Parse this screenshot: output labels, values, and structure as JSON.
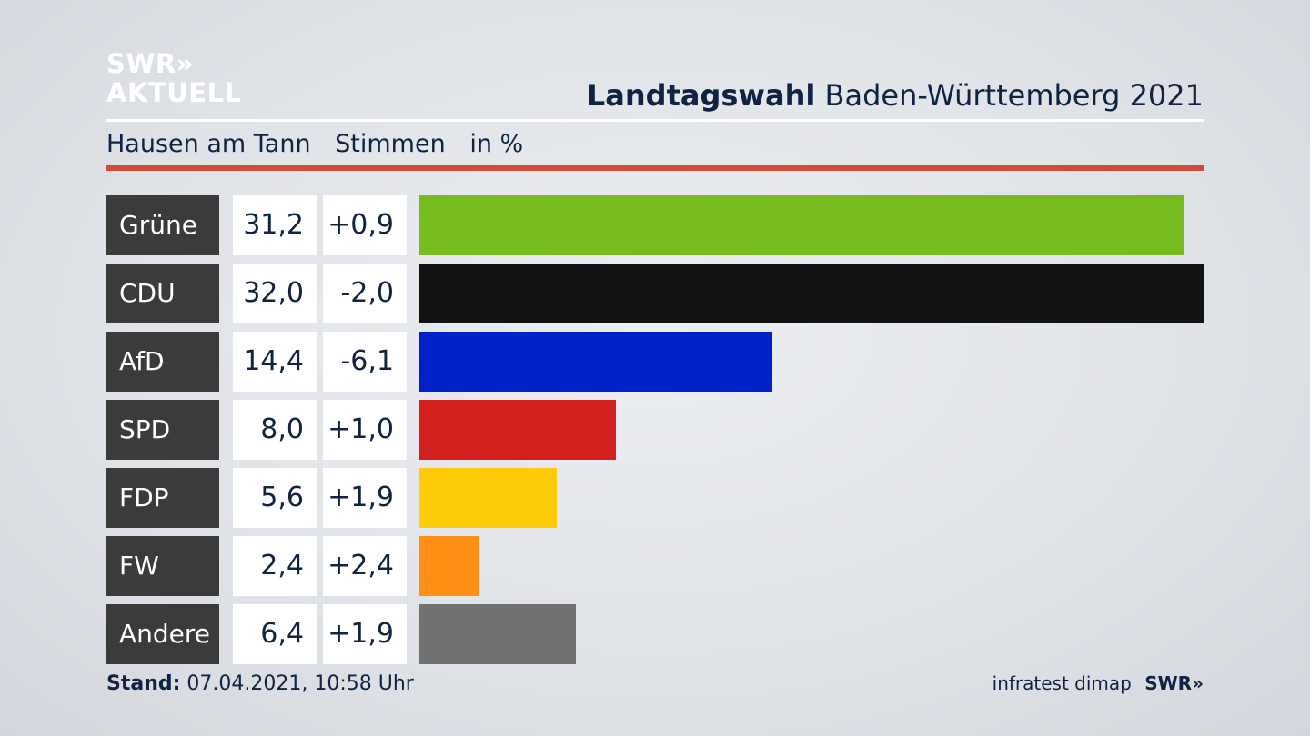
{
  "logo": {
    "line1": "SWR»",
    "line2": "AKTUELL"
  },
  "header": {
    "title_bold": "Landtagswahl",
    "title_rest": "Baden-Württemberg 2021"
  },
  "subheader": {
    "place": "Hausen am Tann",
    "metric": "Stimmen",
    "unit": "in %"
  },
  "footer": {
    "stand_label": "Stand:",
    "stand_value": "07.04.2021, 10:58 Uhr",
    "source": "infratest dimap",
    "brand": "SWR»"
  },
  "chart_data": {
    "type": "bar",
    "categories": [
      "Grüne",
      "CDU",
      "AfD",
      "SPD",
      "FDP",
      "FW",
      "Andere"
    ],
    "values": [
      31.2,
      32.0,
      14.4,
      8.0,
      5.6,
      2.4,
      6.4
    ],
    "value_labels": [
      "31,2",
      "32,0",
      "14,4",
      "8,0",
      "5,6",
      "2,4",
      "6,4"
    ],
    "change_labels": [
      "+0,9",
      "-2,0",
      "-6,1",
      "+1,0",
      "+1,9",
      "+2,4",
      "+1,9"
    ],
    "changes": [
      0.9,
      -2.0,
      -6.1,
      1.0,
      1.9,
      2.4,
      1.9
    ],
    "colors": [
      "#76bc1d",
      "#121212",
      "#0021c8",
      "#d41f1f",
      "#fecb0a",
      "#fe8f17",
      "#727272"
    ],
    "orientation": "horizontal",
    "xlim": [
      0,
      32.0
    ]
  }
}
